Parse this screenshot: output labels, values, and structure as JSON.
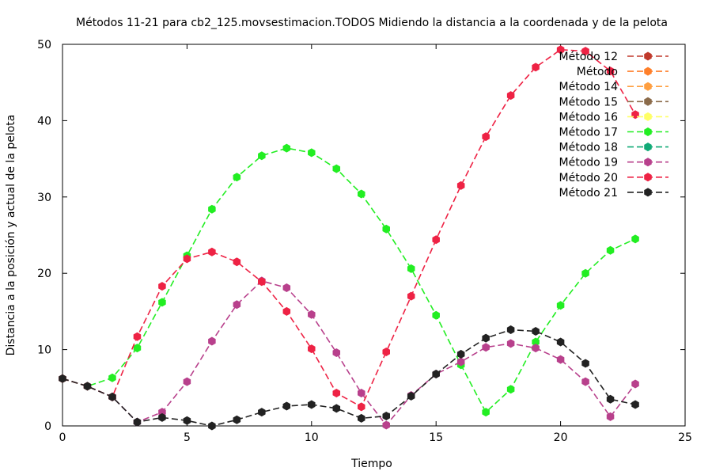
{
  "chart_data": {
    "type": "line",
    "title": "Métodos 11-21 para cb2_125.movsestimacion.TODOS Midiendo la distancia a la coordenada y de la pelota",
    "xlabel": "Tiempo",
    "ylabel": "Distancia a la posición y actual de la pelota",
    "xlim": [
      0,
      25
    ],
    "ylim": [
      0,
      50
    ],
    "xticks": [
      "0",
      "5",
      "10",
      "15",
      "20",
      "25"
    ],
    "yticks": [
      "0",
      "10",
      "20",
      "30",
      "40",
      "50"
    ],
    "grid": false,
    "legend_position": "top-right",
    "series": [
      {
        "name": "Método 12",
        "color": "#c0392b",
        "x": [],
        "y": []
      },
      {
        "name": "Método",
        "color": "#ff7f2a",
        "x": [],
        "y": []
      },
      {
        "name": "Método 14",
        "color": "#ff9f40",
        "x": [],
        "y": []
      },
      {
        "name": "Método 15",
        "color": "#8b6b4a",
        "x": [],
        "y": []
      },
      {
        "name": "Método 16",
        "color": "#ffff66",
        "x": [],
        "y": []
      },
      {
        "name": "Método 17",
        "color": "#22ee22",
        "x": [
          0,
          1,
          2,
          3,
          4,
          5,
          6,
          7,
          8,
          9,
          10,
          11,
          12,
          13,
          14,
          15,
          16,
          17,
          18,
          19,
          20,
          21,
          22,
          23
        ],
        "y": [
          6.2,
          5.2,
          6.3,
          10.2,
          16.2,
          22.3,
          28.4,
          32.6,
          35.4,
          36.4,
          35.8,
          33.7,
          30.4,
          25.8,
          20.6,
          14.5,
          8.0,
          1.8,
          4.8,
          11.0,
          15.8,
          20.0,
          23.0,
          24.5
        ]
      },
      {
        "name": "Método 18",
        "color": "#11aa77",
        "x": [],
        "y": []
      },
      {
        "name": "Método 19",
        "color": "#b8408c",
        "x": [
          0,
          1,
          2,
          3,
          4,
          5,
          6,
          7,
          8,
          9,
          10,
          11,
          12,
          13,
          14,
          15,
          16,
          17,
          18,
          19,
          20,
          21,
          22,
          23
        ],
        "y": [
          6.2,
          5.2,
          3.8,
          0.5,
          1.8,
          5.8,
          11.1,
          15.9,
          19.0,
          18.1,
          14.6,
          9.6,
          4.3,
          0.1,
          4.0,
          6.8,
          8.4,
          10.3,
          10.8,
          10.2,
          8.7,
          5.8,
          1.2,
          5.5
        ]
      },
      {
        "name": "Método 20",
        "color": "#ee2244",
        "x": [
          0,
          1,
          2,
          3,
          4,
          5,
          6,
          7,
          8,
          9,
          10,
          11,
          12,
          13,
          14,
          15,
          16,
          17,
          18,
          19,
          20,
          21,
          22,
          23
        ],
        "y": [
          6.2,
          5.2,
          3.8,
          11.7,
          18.3,
          21.9,
          22.8,
          21.5,
          18.9,
          15.0,
          10.1,
          4.3,
          2.5,
          9.7,
          17.0,
          24.4,
          31.5,
          37.9,
          43.3,
          47.0,
          49.3,
          49.1,
          46.5,
          40.8
        ]
      },
      {
        "name": "Método 21",
        "color": "#222222",
        "x": [
          0,
          1,
          2,
          3,
          4,
          5,
          6,
          7,
          8,
          9,
          10,
          11,
          12,
          13,
          14,
          15,
          16,
          17,
          18,
          19,
          20,
          21,
          22,
          23
        ],
        "y": [
          6.2,
          5.2,
          3.8,
          0.5,
          1.1,
          0.7,
          0.0,
          0.8,
          1.8,
          2.6,
          2.8,
          2.3,
          1.0,
          1.3,
          3.9,
          6.8,
          9.4,
          11.5,
          12.6,
          12.4,
          11.0,
          8.2,
          3.5,
          2.8
        ]
      }
    ]
  }
}
